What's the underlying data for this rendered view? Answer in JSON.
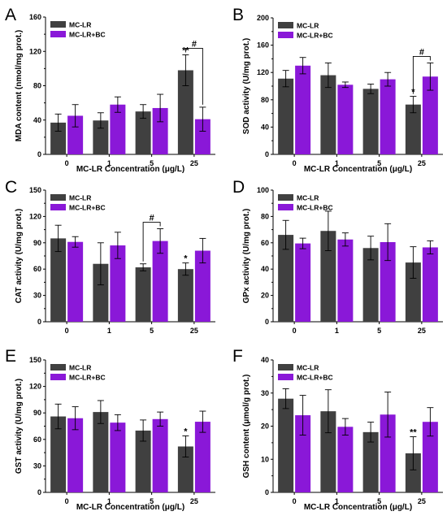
{
  "colors": {
    "mc_lr": "#404040",
    "mc_lr_bc": "#8a18d8"
  },
  "chart_data": [
    {
      "type": "bar",
      "panel": "A",
      "xlabel": "MC-LR Concentration (μg/L)",
      "ylabel": "MDA content (nmol/mg prot.)",
      "categories": [
        "0",
        "1",
        "5",
        "25"
      ],
      "ylim": [
        0,
        160
      ],
      "yticks": [
        "0",
        "40",
        "80",
        "120",
        "160"
      ],
      "legend": "top-left",
      "series": [
        {
          "name": "MC-LR",
          "values": [
            37,
            39.5,
            50,
            98
          ],
          "errors": [
            10,
            9,
            8,
            18
          ]
        },
        {
          "name": "MC-LR+BC",
          "values": [
            45,
            58,
            54,
            41
          ],
          "errors": [
            13,
            9,
            16,
            14
          ]
        }
      ],
      "annotations": [
        {
          "text": "**",
          "series": 0,
          "category": 3
        },
        {
          "text": "#",
          "bracket": true,
          "category": 3
        }
      ]
    },
    {
      "type": "bar",
      "panel": "B",
      "xlabel": "MC-LR Concentration (μg/L)",
      "ylabel": "SOD activity (U/mg prot.)",
      "categories": [
        "0",
        "1",
        "5",
        "25"
      ],
      "ylim": [
        0,
        200
      ],
      "yticks": [
        "0",
        "40",
        "80",
        "120",
        "160",
        "200"
      ],
      "legend": "top-left",
      "series": [
        {
          "name": "MC-LR",
          "values": [
            111,
            116,
            96,
            73
          ],
          "errors": [
            12,
            18,
            7,
            12
          ]
        },
        {
          "name": "MC-LR+BC",
          "values": [
            130,
            102,
            110,
            114
          ],
          "errors": [
            12,
            4,
            10,
            20
          ]
        }
      ],
      "annotations": [
        {
          "text": "*",
          "series": 0,
          "category": 3
        },
        {
          "text": "#",
          "bracket": true,
          "category": 3
        }
      ]
    },
    {
      "type": "bar",
      "panel": "C",
      "xlabel": "",
      "ylabel": "CAT activity (U/mg prot.)",
      "categories": [
        "0",
        "1",
        "5",
        "25"
      ],
      "ylim": [
        0,
        150
      ],
      "yticks": [
        "0",
        "30",
        "60",
        "90",
        "120",
        "150"
      ],
      "legend": "top-left",
      "series": [
        {
          "name": "MC-LR",
          "values": [
            95,
            66,
            62,
            60
          ],
          "errors": [
            15,
            24,
            4,
            7
          ]
        },
        {
          "name": "MC-LR+BC",
          "values": [
            91,
            87,
            92,
            81
          ],
          "errors": [
            6,
            15,
            14,
            14
          ]
        }
      ],
      "annotations": [
        {
          "text": "*",
          "series": 0,
          "category": 3
        },
        {
          "text": "#",
          "bracket": true,
          "category": 2
        }
      ]
    },
    {
      "type": "bar",
      "panel": "D",
      "xlabel": "",
      "ylabel": "GPx activity (U/mg prot.)",
      "categories": [
        "0",
        "1",
        "5",
        "25"
      ],
      "ylim": [
        0,
        100
      ],
      "yticks": [
        "0",
        "20",
        "40",
        "60",
        "80",
        "100"
      ],
      "legend": "top-left",
      "series": [
        {
          "name": "MC-LR",
          "values": [
            66,
            69,
            56,
            45
          ],
          "errors": [
            11,
            15,
            9,
            12
          ]
        },
        {
          "name": "MC-LR+BC",
          "values": [
            59.5,
            62.5,
            60.5,
            56.5
          ],
          "errors": [
            4,
            5,
            14,
            5
          ]
        }
      ],
      "annotations": []
    },
    {
      "type": "bar",
      "panel": "E",
      "xlabel": "MC-LR Concentration (μg/L)",
      "ylabel": "GST activity (U/mg prot.)",
      "categories": [
        "0",
        "1",
        "5",
        "25"
      ],
      "ylim": [
        0,
        150
      ],
      "yticks": [
        "0",
        "30",
        "60",
        "90",
        "120",
        "150"
      ],
      "legend": "top-left",
      "series": [
        {
          "name": "MC-LR",
          "values": [
            86,
            91,
            70,
            52
          ],
          "errors": [
            14,
            13,
            12,
            12
          ]
        },
        {
          "name": "MC-LR+BC",
          "values": [
            84,
            79,
            83,
            80
          ],
          "errors": [
            13,
            9,
            8,
            12
          ]
        }
      ],
      "annotations": [
        {
          "text": "*",
          "series": 0,
          "category": 3
        }
      ]
    },
    {
      "type": "bar",
      "panel": "F",
      "xlabel": "MC-LR Concentration (μg/L)",
      "ylabel": "GSH content (μmol/g prot.)",
      "categories": [
        "0",
        "1",
        "5",
        "25"
      ],
      "ylim": [
        0,
        40
      ],
      "yticks": [
        "0",
        "10",
        "20",
        "30",
        "40"
      ],
      "legend": "top-left",
      "series": [
        {
          "name": "MC-LR",
          "values": [
            28.3,
            24.5,
            18.2,
            11.8
          ],
          "errors": [
            3,
            6.5,
            3,
            5
          ]
        },
        {
          "name": "MC-LR+BC",
          "values": [
            23.3,
            19.8,
            23.5,
            21.3
          ],
          "errors": [
            6,
            2.5,
            6.8,
            4.3
          ]
        }
      ],
      "annotations": [
        {
          "text": "**",
          "series": 0,
          "category": 3
        }
      ]
    }
  ]
}
